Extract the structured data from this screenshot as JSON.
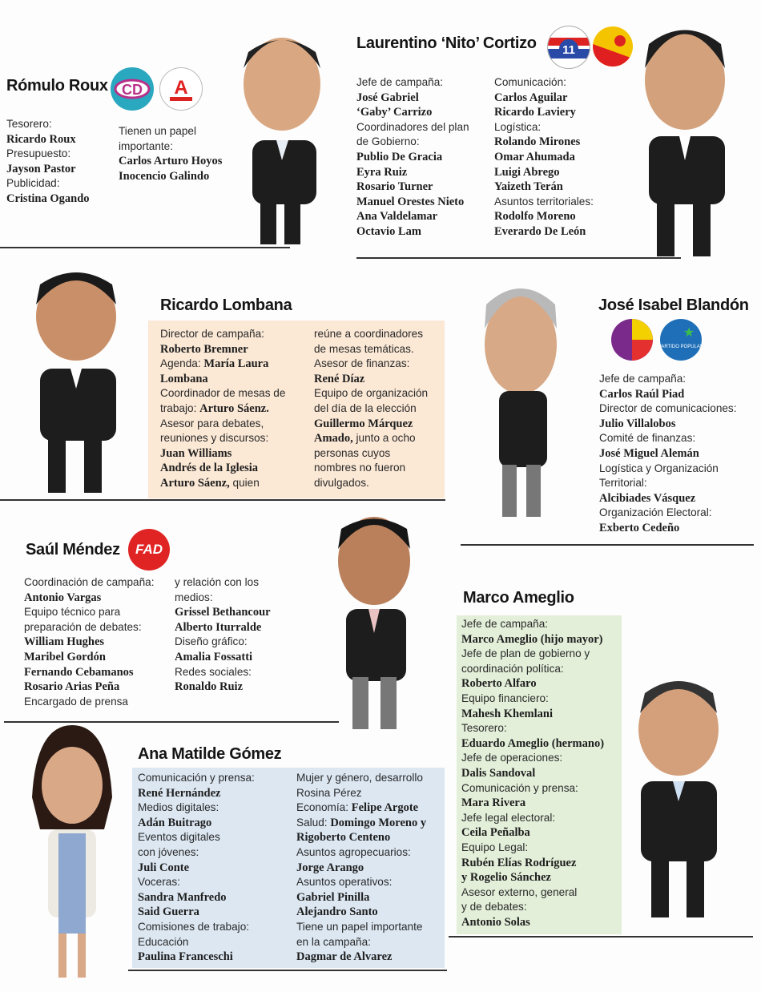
{
  "colors": {
    "lombana_box": "#fbe8d5",
    "ameglio_box": "#e3efd9",
    "gomez_box": "#dce7f2"
  },
  "candidates": {
    "roux": {
      "name": "Rómulo Roux",
      "logos": [
        "cd-party-logo",
        "alianza-party-logo"
      ],
      "col1": [
        {
          "l": "Tesorero:"
        },
        {
          "b": "Ricardo Roux"
        },
        {
          "l": "Presupuesto:"
        },
        {
          "b": "Jayson Pastor"
        },
        {
          "l": "Publicidad:"
        },
        {
          "b": "Cristina Ogando"
        }
      ],
      "col2": [
        {
          "l": "Tienen un papel"
        },
        {
          "l": "importante:"
        },
        {
          "b": "Carlos Arturo Hoyos"
        },
        {
          "b": "Inocencio Galindo"
        }
      ]
    },
    "cortizo": {
      "name": "Laurentino ‘Nito’ Cortizo",
      "logos": [
        "prd-party-logo",
        "molirena-party-logo"
      ],
      "col1": [
        {
          "l": "Jefe de campaña:"
        },
        {
          "b": "José Gabriel"
        },
        {
          "b": "‘Gaby’ Carrizo"
        },
        {
          "l": "Coordinadores del plan"
        },
        {
          "l": "de Gobierno:"
        },
        {
          "b": "Publio De Gracia"
        },
        {
          "b": "Eyra Ruiz"
        },
        {
          "b": "Rosario Turner"
        },
        {
          "b": "Manuel Orestes Nieto"
        },
        {
          "b": "Ana Valdelamar"
        },
        {
          "b": "Octavio Lam"
        }
      ],
      "col2": [
        {
          "l": "Comunicación:"
        },
        {
          "b": "Carlos Aguilar"
        },
        {
          "b": "Ricardo Laviery"
        },
        {
          "l": "Logística:"
        },
        {
          "b": "Rolando Mirones"
        },
        {
          "b": "Omar Ahumada"
        },
        {
          "b": "Luigi Abrego"
        },
        {
          "b": "Yaizeth Terán"
        },
        {
          "l": "Asuntos territoriales:"
        },
        {
          "b": "Rodolfo Moreno"
        },
        {
          "b": "Everardo De León"
        }
      ]
    },
    "lombana": {
      "name": "Ricardo Lombana",
      "col1": [
        {
          "l": "Director de campaña:"
        },
        {
          "b": "Roberto Bremner"
        },
        {
          "l": "Agenda: ",
          "b": "María Laura"
        },
        {
          "b": "Lombana"
        },
        {
          "l": "Coordinador de mesas de"
        },
        {
          "l": "trabajo: ",
          "b": "Arturo Sáenz."
        },
        {
          "l": "Asesor para debates,"
        },
        {
          "l": "reuniones y discursos:"
        },
        {
          "b": "Juan Williams"
        },
        {
          "b": "Andrés de la Iglesia"
        },
        {
          "b": "Arturo Sáenz,",
          "l2": " quien"
        }
      ],
      "col2": [
        {
          "l": "reúne a coordinadores"
        },
        {
          "l": "de mesas temáticas."
        },
        {
          "l": "Asesor de finanzas:"
        },
        {
          "b": "René Díaz"
        },
        {
          "l": "Equipo de organización"
        },
        {
          "l": "del día de la elección"
        },
        {
          "b": "Guillermo Márquez"
        },
        {
          "b": "Amado,",
          "l2": " junto a ocho"
        },
        {
          "l": "personas cuyos"
        },
        {
          "l": "nombres no fueron"
        },
        {
          "l": "divulgados."
        }
      ]
    },
    "blandon": {
      "name": "José Isabel Blandón",
      "logos": [
        "panamenista-party-logo",
        "partido-popular-logo"
      ],
      "col1": [
        {
          "l": "Jefe de campaña:"
        },
        {
          "b": "Carlos Raúl Piad"
        },
        {
          "l": "Director de comunicaciones:"
        },
        {
          "b": "Julio Villalobos"
        },
        {
          "l": "Comité de finanzas:"
        },
        {
          "b": "José Miguel Alemán"
        },
        {
          "l": "Logística y Organización"
        },
        {
          "l": "Territorial:"
        },
        {
          "b": "Alcibiades Vásquez"
        },
        {
          "l": "Organización Electoral:"
        },
        {
          "b": "Exberto Cedeño"
        }
      ]
    },
    "mendez": {
      "name": "Saúl Méndez",
      "logo_text": "FAD",
      "col1": [
        {
          "l": "Coordinación de campaña:"
        },
        {
          "b": "Antonio Vargas"
        },
        {
          "l": "Equipo técnico para"
        },
        {
          "l": "preparación de debates:"
        },
        {
          "b": "William Hughes"
        },
        {
          "b": "Maribel Gordón"
        },
        {
          "b": "Fernando Cebamanos"
        },
        {
          "b": "Rosario Arias Peña"
        },
        {
          "l": "Encargado de prensa"
        }
      ],
      "col2": [
        {
          "l": "y relación con los"
        },
        {
          "l": "medios:"
        },
        {
          "b": "Grissel Bethancour"
        },
        {
          "b": "Alberto Iturralde"
        },
        {
          "l": "Diseño gráfico:"
        },
        {
          "b": "Amalia Fossatti"
        },
        {
          "l": "Redes sociales:"
        },
        {
          "b": "Ronaldo Ruiz"
        }
      ]
    },
    "ameglio": {
      "name": "Marco Ameglio",
      "col1": [
        {
          "l": "Jefe de campaña:"
        },
        {
          "b": "Marco Ameglio (hijo mayor)"
        },
        {
          "l": "Jefe de plan de gobierno y"
        },
        {
          "l": "coordinación política:"
        },
        {
          "b": "Roberto Alfaro"
        },
        {
          "l": "Equipo financiero:"
        },
        {
          "b": "Mahesh Khemlani"
        },
        {
          "l": "Tesorero:"
        },
        {
          "b": "Eduardo Ameglio (hermano)"
        },
        {
          "l": "Jefe de operaciones:"
        },
        {
          "b": "Dalis Sandoval"
        },
        {
          "l": "Comunicación y prensa:"
        },
        {
          "b": "Mara Rivera"
        },
        {
          "l": "Jefe legal electoral:"
        },
        {
          "b": "Ceila Peñalba"
        },
        {
          "l": "Equipo Legal:"
        },
        {
          "b": "Rubén Elías Rodríguez"
        },
        {
          "b": "y Rogelio Sánchez"
        },
        {
          "l": "Asesor externo, general"
        },
        {
          "l": "y de debates:"
        },
        {
          "b": "Antonio Solas"
        }
      ]
    },
    "gomez": {
      "name": "Ana Matilde Gómez",
      "col1": [
        {
          "l": "Comunicación y prensa:"
        },
        {
          "b": "René Hernández"
        },
        {
          "l": "Medios digitales:"
        },
        {
          "b": "Adán Buitrago"
        },
        {
          "l": "Eventos digitales"
        },
        {
          "l": "con jóvenes:"
        },
        {
          "b": "Juli Conte"
        },
        {
          "l": "Voceras:"
        },
        {
          "b": "Sandra Manfredo"
        },
        {
          "b": "Said Guerra"
        },
        {
          "l": "Comisiones de trabajo:"
        },
        {
          "l": "Educación"
        },
        {
          "b": "Paulina Franceschi"
        }
      ],
      "col2": [
        {
          "l": "Mujer y género, desarrollo"
        },
        {
          "l": "Rosina Pérez"
        },
        {
          "l": "Economía: ",
          "b": "Felipe Argote"
        },
        {
          "l": "Salud: ",
          "b": "Domingo Moreno y"
        },
        {
          "b": "Rigoberto Centeno"
        },
        {
          "l": "Asuntos agropecuarios:"
        },
        {
          "b": "Jorge Arango"
        },
        {
          "l": "Asuntos operativos:"
        },
        {
          "b": "Gabriel Pinilla"
        },
        {
          "b": "Alejandro Santo"
        },
        {
          "l": "Tiene un papel importante"
        },
        {
          "l": "en la campaña:"
        },
        {
          "b": "Dagmar de Alvarez"
        }
      ]
    }
  }
}
